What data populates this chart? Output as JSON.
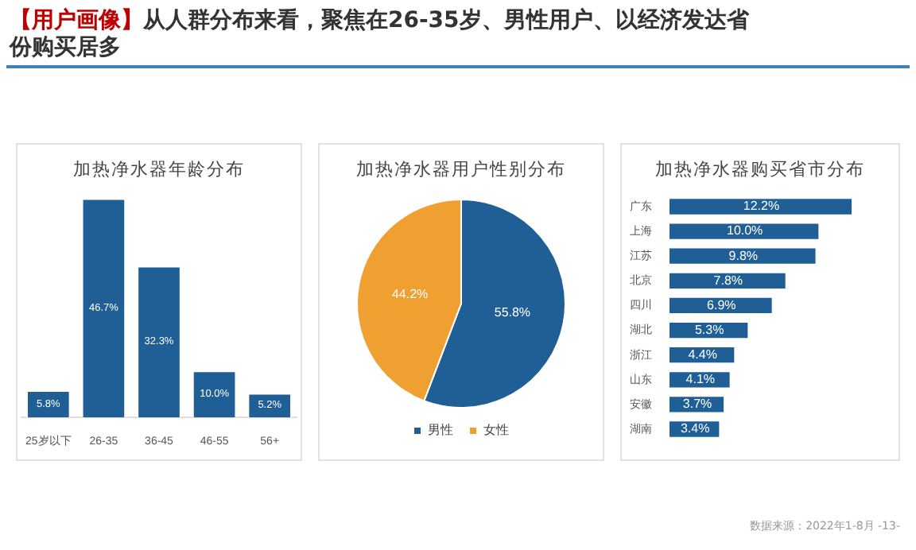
{
  "chart_data": [
    {
      "type": "bar",
      "title": "加热净水器年龄分布",
      "categories": [
        "25岁以下",
        "26-35",
        "36-45",
        "46-55",
        "56+"
      ],
      "values": [
        5.8,
        46.7,
        32.3,
        10.0,
        5.2
      ],
      "value_labels": [
        "5.8%",
        "46.7%",
        "32.3%",
        "10.0%",
        "5.2%"
      ],
      "color": "#1f5f96",
      "tick_labels": "x",
      "annotations": [
        "【用户画像】",
        "从人群分布来看，聚焦在26-35岁、男性用户、以经济发达省份购买居多",
        "数据来源：2022年1-8月",
        "-13-"
      ]
    },
    {
      "type": "pie",
      "title": "加热净水器用户性别分布",
      "categories": [
        "男性",
        "女性"
      ],
      "values": [
        55.8,
        44.2
      ],
      "value_labels": [
        "55.8%",
        "44.2%"
      ],
      "colors": [
        "#1f5f96",
        "#f0a030"
      ],
      "legend": "bottom"
    },
    {
      "type": "bar",
      "orientation": "horizontal",
      "title": "加热净水器购买省市分布",
      "categories": [
        "广东",
        "上海",
        "江苏",
        "北京",
        "四川",
        "湖北",
        "浙江",
        "山东",
        "安徽",
        "湖南"
      ],
      "values": [
        12.2,
        10.0,
        9.8,
        7.8,
        6.9,
        5.3,
        4.4,
        4.1,
        3.7,
        3.4
      ],
      "value_labels": [
        "12.2%",
        "10.0%",
        "9.8%",
        "7.8%",
        "6.9%",
        "5.3%",
        "4.4%",
        "4.1%",
        "3.7%",
        "3.4%"
      ],
      "color": "#1f5f96",
      "tick_labels": "y"
    }
  ]
}
